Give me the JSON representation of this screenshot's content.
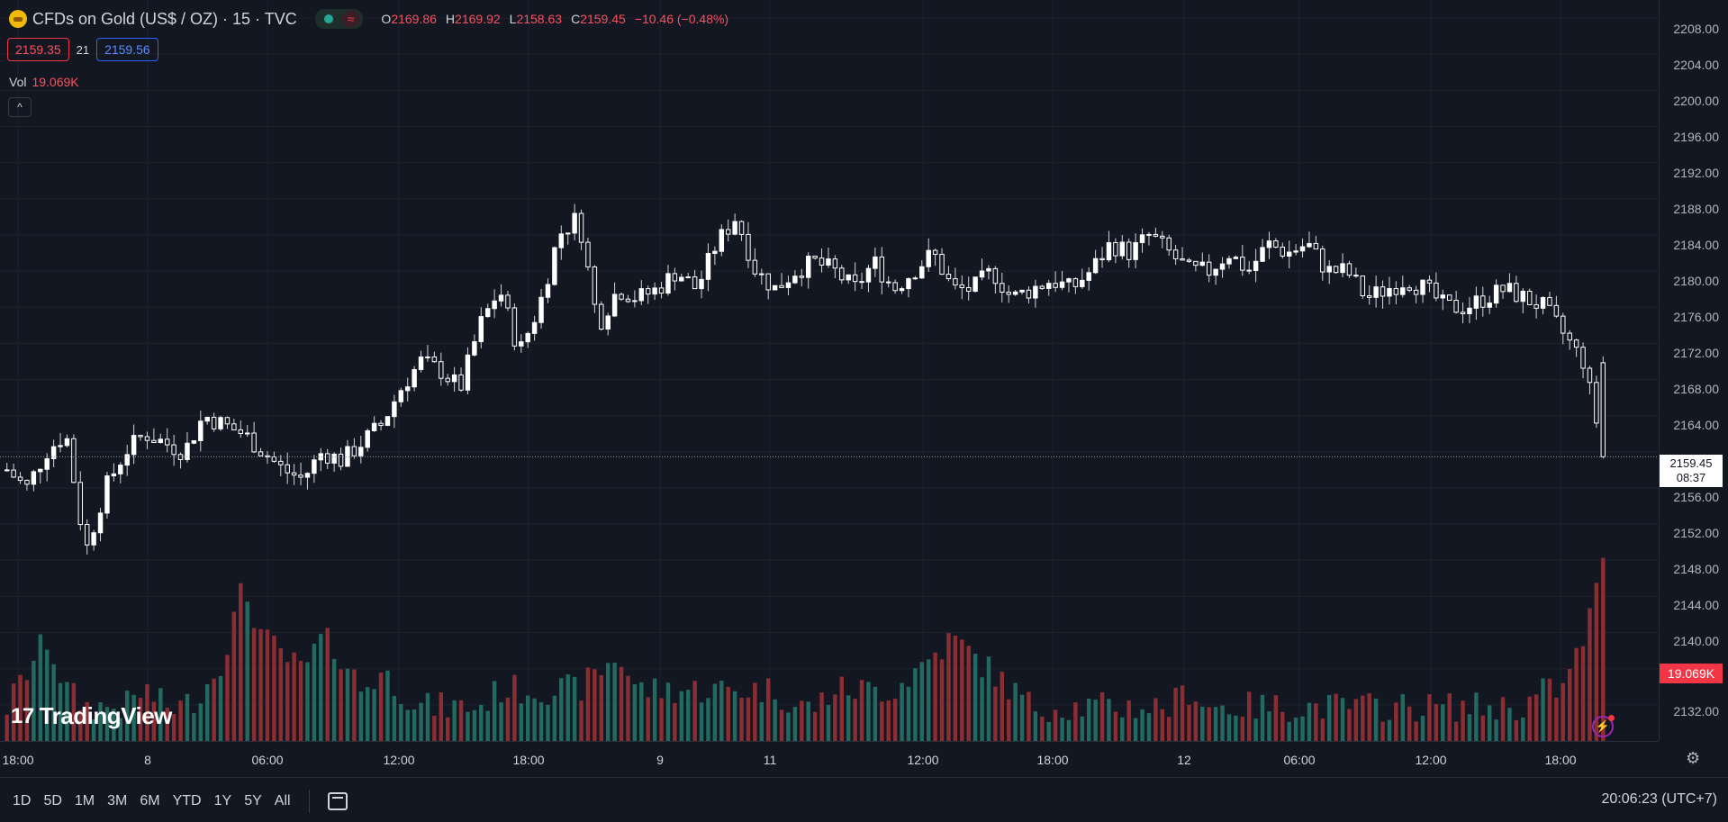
{
  "header": {
    "symbol_title": "CFDs on Gold (US$ / OZ) · 15 · TVC",
    "market_status_icon": "market-open-dot",
    "wave_icon": "≈",
    "ohlc": {
      "o_label": "O",
      "o_value": "2169.86",
      "h_label": "H",
      "h_value": "2169.92",
      "l_label": "L",
      "l_value": "2158.63",
      "c_label": "C",
      "c_value": "2159.45",
      "change": "−10.46 (−0.48%)"
    },
    "bid": "2159.35",
    "spread": "21",
    "ask": "2159.56",
    "vol_label": "Vol",
    "vol_value": "19.069K",
    "collapse_icon": "^"
  },
  "price_axis": {
    "ticks": [
      "2208.00",
      "2204.00",
      "2200.00",
      "2196.00",
      "2192.00",
      "2188.00",
      "2184.00",
      "2180.00",
      "2176.00",
      "2172.00",
      "2168.00",
      "2164.00",
      "2156.00",
      "2152.00",
      "2148.00",
      "2144.00",
      "2140.00",
      "2132.00"
    ],
    "last_price": "2159.45",
    "countdown": "08:37",
    "volume_label": "19.069K"
  },
  "time_axis": {
    "ticks": [
      "18:00",
      "8",
      "06:00",
      "12:00",
      "18:00",
      "9",
      "11",
      "12:00",
      "18:00",
      "12",
      "06:00",
      "12:00",
      "18:00"
    ]
  },
  "bottom_bar": {
    "ranges": [
      "1D",
      "5D",
      "1M",
      "3M",
      "6M",
      "YTD",
      "1Y",
      "5Y",
      "All"
    ],
    "clock": "20:06:23 (UTC+7)"
  },
  "branding": {
    "logo_text": "TradingView",
    "logo_mark": "17"
  },
  "colors": {
    "up": "#ffffff",
    "down": "#ffffff",
    "vol_up": "#22695f",
    "vol_down": "#8a2e33",
    "background": "#131722",
    "accent": "#f23645"
  },
  "chart_data": {
    "type": "candlestick",
    "interval": "15",
    "ylim": [
      2128,
      2210
    ],
    "last_close": 2159.45,
    "path": [
      2158,
      2156,
      2160,
      2162,
      2149,
      2156,
      2160,
      2162,
      2161,
      2160,
      2164,
      2163,
      2162,
      2160,
      2158,
      2157,
      2160,
      2159,
      2161,
      2163,
      2167,
      2170,
      2169,
      2167,
      2174,
      2178,
      2171,
      2176,
      2184,
      2186,
      2174,
      2178,
      2177,
      2178,
      2180,
      2178,
      2183,
      2186,
      2180,
      2178,
      2180,
      2181,
      2180,
      2178,
      2181,
      2178,
      2180,
      2182,
      2178,
      2178,
      2180,
      2177,
      2178,
      2179,
      2178,
      2180,
      2183,
      2182,
      2184,
      2182,
      2180,
      2180,
      2182,
      2180,
      2183,
      2182,
      2183,
      2180,
      2180,
      2177,
      2178,
      2179,
      2178,
      2176,
      2176,
      2177,
      2178,
      2177,
      2176,
      2173,
      2170,
      2160
    ],
    "volume_path": [
      0.2,
      0.4,
      0.6,
      0.3,
      0.2,
      0.2,
      0.2,
      0.3,
      0.2,
      0.2,
      0.3,
      0.5,
      0.9,
      0.6,
      0.5,
      0.4,
      0.6,
      0.5,
      0.3,
      0.4,
      0.3,
      0.2,
      0.2,
      0.2,
      0.2,
      0.3,
      0.3,
      0.3,
      0.3,
      0.3,
      0.4,
      0.5,
      0.3,
      0.3,
      0.3,
      0.3,
      0.3,
      0.3,
      0.3,
      0.3,
      0.2,
      0.2,
      0.3,
      0.3,
      0.3,
      0.3,
      0.4,
      0.5,
      0.6,
      0.5,
      0.4,
      0.3,
      0.2,
      0.2,
      0.2,
      0.2,
      0.2,
      0.2,
      0.2,
      0.2,
      0.3,
      0.2,
      0.2,
      0.2,
      0.2,
      0.2,
      0.2,
      0.2,
      0.2,
      0.2,
      0.2,
      0.2,
      0.2,
      0.2,
      0.2,
      0.2,
      0.2,
      0.2,
      0.3,
      0.3,
      0.6,
      1.0
    ]
  }
}
